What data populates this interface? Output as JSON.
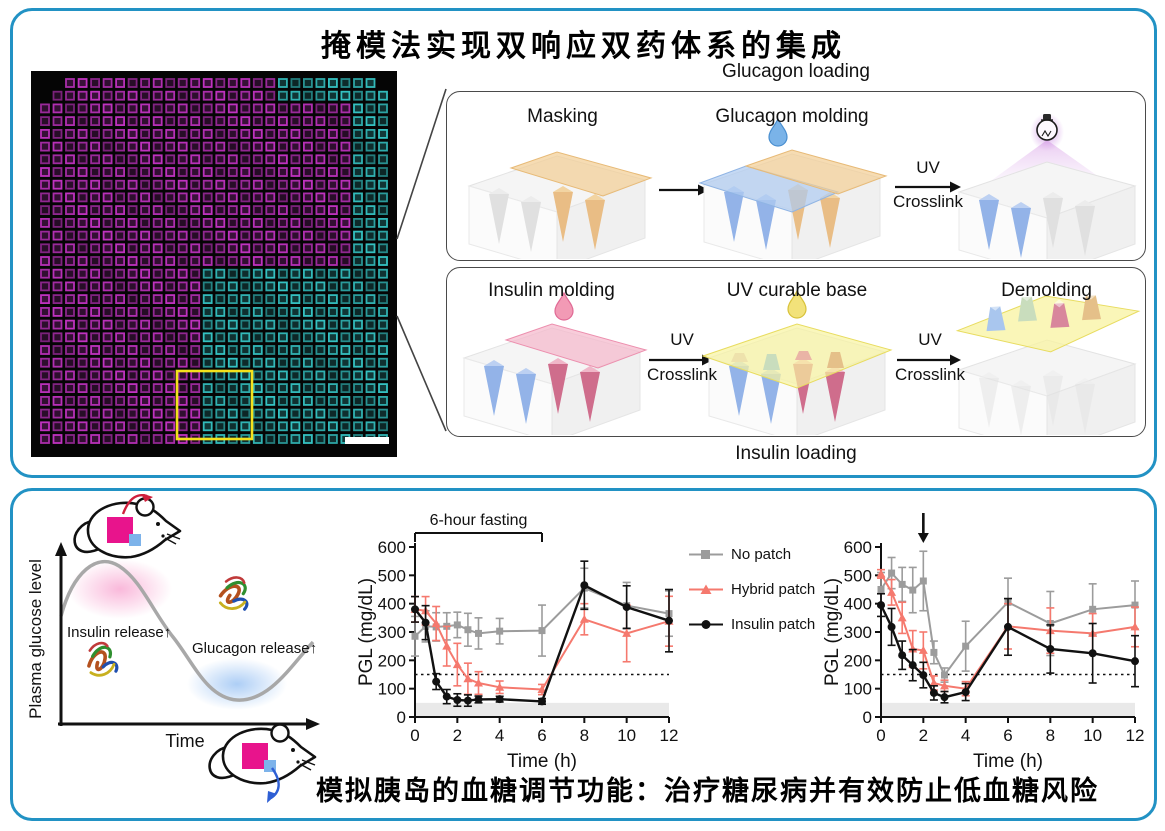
{
  "figure": {
    "top_panel": {
      "title": "掩模法实现双响应双药体系的集成",
      "glucagon_flow": {
        "title": "Glucagon loading",
        "step_masking": "Masking",
        "step_molding": "Glucagon molding",
        "uv_line1": "UV",
        "uv_line2": "Crosslink"
      },
      "insulin_flow": {
        "title": "Insulin loading",
        "step_molding": "Insulin molding",
        "step_base": "UV curable base",
        "step_demolding": "Demolding",
        "uv_line1": "UV",
        "uv_line2": "Crosslink"
      },
      "micrograph": {
        "description": "fluorescence image of microneedle array, magenta and cyan squares",
        "magenta_color": "#c233c2",
        "cyan_color": "#35c4c4",
        "roi_color": "#f4e11c",
        "grid": {
          "cols": 28,
          "rows": 29
        }
      }
    },
    "bottom_panel": {
      "schematic": {
        "ylabel": "Plasma glucose level",
        "xlabel": "Time",
        "insulin_label": "Insulin release↑",
        "glucagon_label": "Glucagon release↑"
      },
      "caption": "模拟胰岛的血糖调节功能：治疗糖尿病并有效防止低血糖风险"
    }
  },
  "legend": {
    "position": "between-charts",
    "items": [
      {
        "label": "No patch",
        "color": "#9c9c9c",
        "marker": "square"
      },
      {
        "label": "Hybrid patch",
        "color": "#f5796e",
        "marker": "triangle"
      },
      {
        "label": "Insulin patch",
        "color": "#111111",
        "marker": "circle"
      }
    ]
  },
  "chart_data": [
    {
      "type": "line",
      "title": "",
      "xlabel": "Time (h)",
      "ylabel": "PGL (mg/dL)",
      "xlim": [
        0,
        12
      ],
      "ylim": [
        0,
        600
      ],
      "xticks": [
        0,
        2,
        4,
        6,
        8,
        10,
        12
      ],
      "yticks": [
        0,
        100,
        200,
        300,
        400,
        500,
        600
      ],
      "dashed_line_y": 150,
      "shaded_band": [
        0,
        50
      ],
      "grid": false,
      "annotation": {
        "type": "bracket",
        "x_from": 0,
        "x_to": 6,
        "label": "6-hour fasting"
      },
      "x": [
        0,
        0.5,
        1,
        1.5,
        2,
        2.5,
        3,
        4,
        6,
        8,
        10,
        12
      ],
      "series": [
        {
          "name": "No patch",
          "color": "#9c9c9c",
          "marker": "square",
          "values": [
            285,
            320,
            318,
            320,
            325,
            308,
            295,
            303,
            305,
            455,
            393,
            365
          ],
          "errors": [
            70,
            55,
            50,
            48,
            45,
            58,
            55,
            45,
            90,
            70,
            82,
            80
          ]
        },
        {
          "name": "Hybrid patch",
          "color": "#f5796e",
          "marker": "triangle",
          "values": [
            380,
            375,
            330,
            250,
            185,
            135,
            120,
            105,
            97,
            345,
            295,
            338
          ],
          "errors": [
            45,
            50,
            60,
            70,
            75,
            55,
            40,
            22,
            18,
            55,
            100,
            88
          ]
        },
        {
          "name": "Insulin patch",
          "color": "#111111",
          "marker": "circle",
          "values": [
            380,
            333,
            125,
            72,
            60,
            58,
            62,
            63,
            55,
            465,
            388,
            340
          ],
          "errors": [
            45,
            60,
            28,
            25,
            22,
            20,
            12,
            10,
            10,
            85,
            75,
            110
          ]
        }
      ]
    },
    {
      "type": "line",
      "title": "",
      "xlabel": "Time (h)",
      "ylabel": "PGL (mg/dL)",
      "xlim": [
        0,
        12
      ],
      "ylim": [
        0,
        600
      ],
      "xticks": [
        0,
        2,
        4,
        6,
        8,
        10,
        12
      ],
      "yticks": [
        0,
        100,
        200,
        300,
        400,
        500,
        600
      ],
      "dashed_line_y": 150,
      "shaded_band": [
        0,
        50
      ],
      "grid": false,
      "annotation": {
        "type": "arrow-down",
        "x": 2
      },
      "x": [
        0,
        0.5,
        1,
        1.5,
        2,
        2.5,
        3,
        4,
        6,
        8,
        10,
        12
      ],
      "series": [
        {
          "name": "No patch",
          "color": "#9c9c9c",
          "marker": "square",
          "values": [
            450,
            508,
            468,
            448,
            480,
            228,
            148,
            250,
            405,
            330,
            380,
            395
          ],
          "errors": [
            60,
            55,
            60,
            80,
            105,
            40,
            25,
            88,
            85,
            113,
            90,
            85
          ]
        },
        {
          "name": "Hybrid patch",
          "color": "#f5796e",
          "marker": "triangle",
          "values": [
            505,
            440,
            350,
            240,
            235,
            120,
            110,
            100,
            320,
            305,
            295,
            318
          ],
          "errors": [
            15,
            45,
            55,
            65,
            65,
            25,
            20,
            25,
            80,
            80,
            70,
            70
          ]
        },
        {
          "name": "Insulin patch",
          "color": "#111111",
          "marker": "circle",
          "values": [
            395,
            318,
            218,
            183,
            148,
            85,
            70,
            88,
            318,
            240,
            225,
            197
          ],
          "errors": [
            40,
            65,
            50,
            55,
            45,
            25,
            20,
            30,
            100,
            85,
            105,
            90
          ]
        }
      ]
    }
  ]
}
